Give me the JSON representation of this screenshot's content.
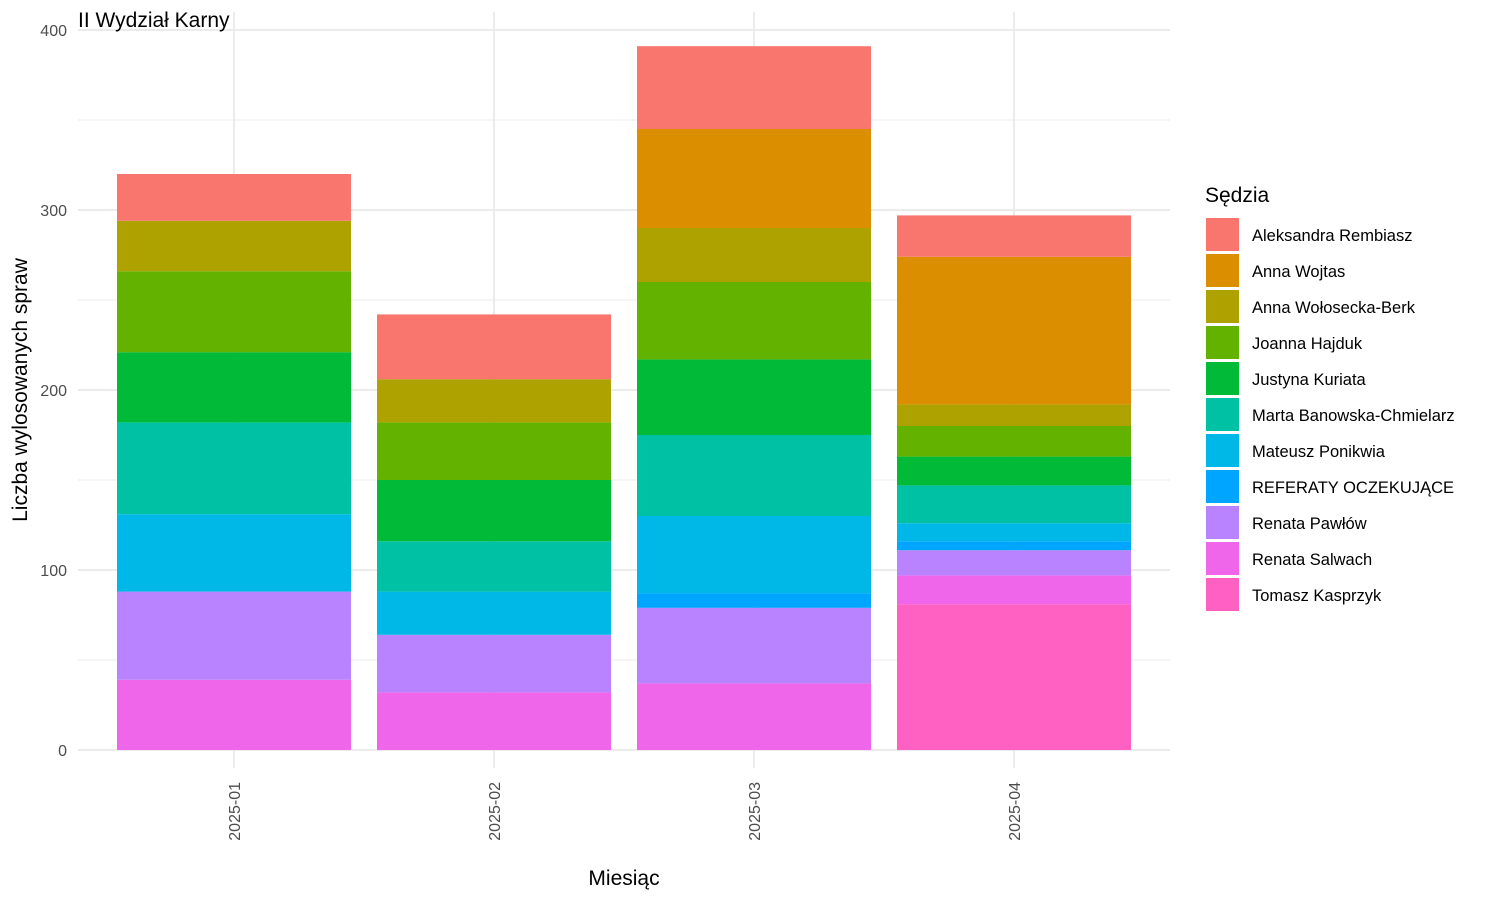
{
  "chart_data": {
    "type": "bar",
    "stacked": true,
    "title": "II Wydział Karny",
    "xlabel": "Miesiąc",
    "ylabel": "Liczba wylosowanych spraw",
    "ylim": [
      0,
      400
    ],
    "yticks": [
      0,
      100,
      200,
      300,
      400
    ],
    "grid": true,
    "legend": {
      "title": "Sędzia",
      "position": "right"
    },
    "categories": [
      "2025-01",
      "2025-02",
      "2025-03",
      "2025-04"
    ],
    "series": [
      {
        "name": "Tomasz Kasprzyk",
        "color": "#FF61C3",
        "values": [
          0,
          0,
          0,
          81
        ]
      },
      {
        "name": "Renata Salwach",
        "color": "#F066EA",
        "values": [
          39,
          32,
          37,
          16
        ]
      },
      {
        "name": "Renata Pawłów",
        "color": "#B983FF",
        "values": [
          49,
          32,
          42,
          14
        ]
      },
      {
        "name": "REFERATY OCZEKUJĄCE",
        "color": "#00A5FF",
        "values": [
          0,
          0,
          8,
          5
        ]
      },
      {
        "name": "Mateusz Ponikwia",
        "color": "#00B8E7",
        "values": [
          43,
          24,
          43,
          10
        ]
      },
      {
        "name": "Marta Banowska-Chmielarz",
        "color": "#00C1A3",
        "values": [
          51,
          28,
          45,
          21
        ]
      },
      {
        "name": "Justyna Kuriata",
        "color": "#00BA38",
        "values": [
          39,
          34,
          42,
          16
        ]
      },
      {
        "name": "Joanna Hajduk",
        "color": "#64B200",
        "values": [
          45,
          32,
          43,
          17
        ]
      },
      {
        "name": "Anna Wołosecka-Berk",
        "color": "#AEA200",
        "values": [
          28,
          24,
          30,
          12
        ]
      },
      {
        "name": "Anna Wojtas",
        "color": "#DB8E00",
        "values": [
          0,
          0,
          55,
          82
        ]
      },
      {
        "name": "Aleksandra Rembiasz",
        "color": "#F8766D",
        "values": [
          26,
          36,
          46,
          23
        ]
      }
    ]
  }
}
